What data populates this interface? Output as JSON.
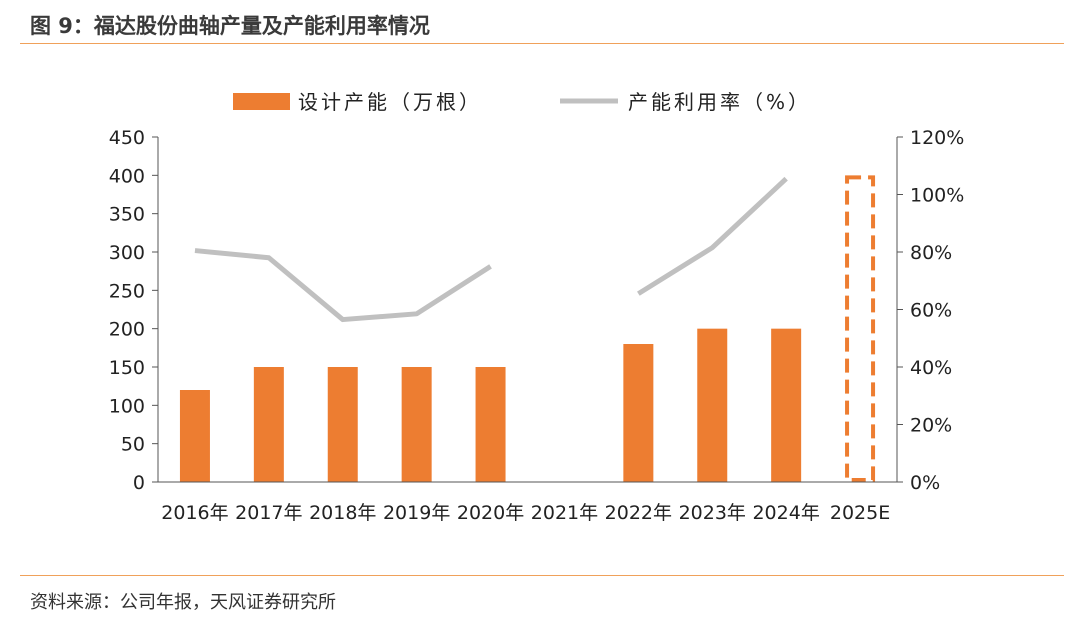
{
  "figure": {
    "title": "图 9：福达股份曲轴产量及产能利用率情况",
    "source": "资料来源：公司年报，天风证券研究所"
  },
  "colors": {
    "bar": "#ed7d31",
    "line": "#c0c0c0",
    "rule": "#f0a15a"
  },
  "chart_data": {
    "type": "bar",
    "categories": [
      "2016年",
      "2017年",
      "2018年",
      "2019年",
      "2020年",
      "2021年",
      "2022年",
      "2023年",
      "2024年",
      "2025E"
    ],
    "series": [
      {
        "name": "设计产能（万根）",
        "type": "bar",
        "axis": "left",
        "values": [
          120,
          150,
          150,
          150,
          150,
          null,
          180,
          200,
          200,
          400
        ],
        "estimate_index": 9
      },
      {
        "name": "产能利用率（%）",
        "type": "line",
        "axis": "right",
        "values": [
          80.5,
          78,
          56.5,
          58.5,
          75,
          null,
          65.5,
          81.5,
          105.5,
          null
        ]
      }
    ],
    "y_left": {
      "ylim": [
        0,
        450
      ],
      "ticks": [
        "0",
        "50",
        "100",
        "150",
        "200",
        "250",
        "300",
        "350",
        "400",
        "450"
      ]
    },
    "y_right": {
      "ylim": [
        0,
        120
      ],
      "ticks": [
        "0%",
        "20%",
        "40%",
        "60%",
        "80%",
        "100%",
        "120%"
      ]
    },
    "legend": "top-center",
    "grid": false
  }
}
